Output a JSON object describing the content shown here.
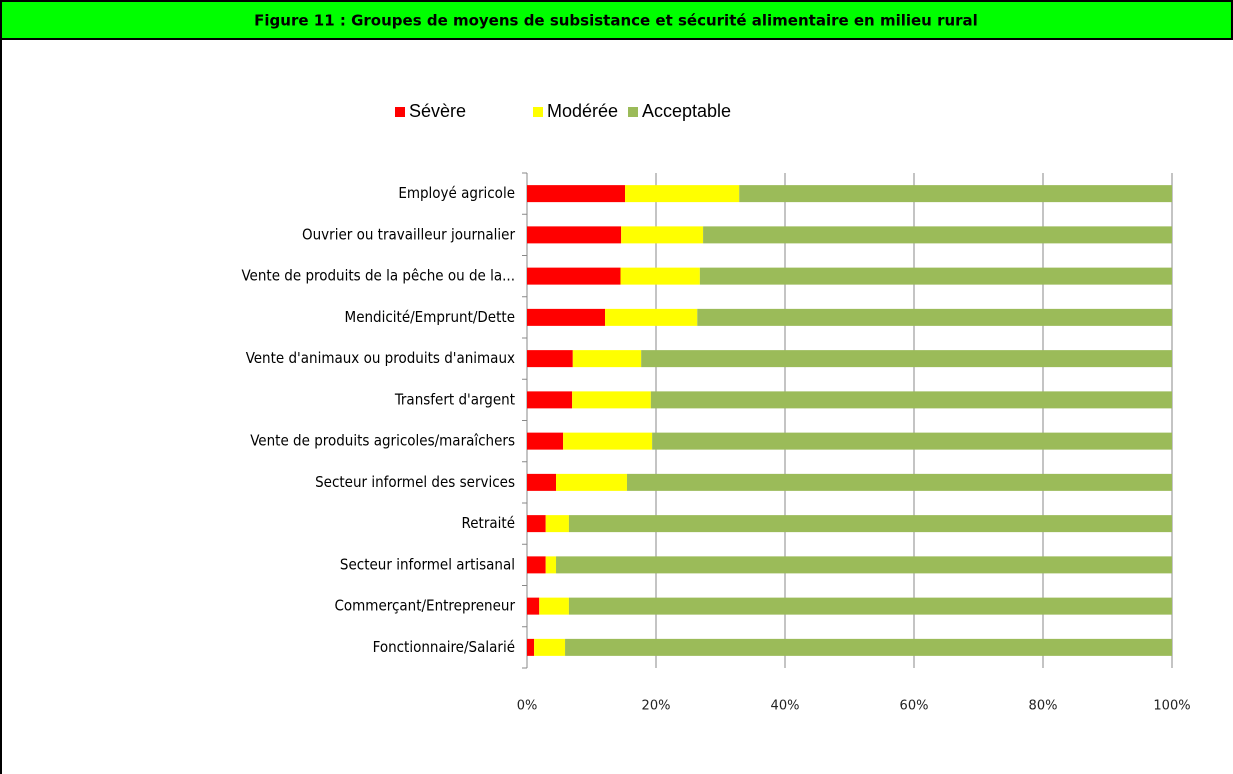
{
  "chart_data": {
    "type": "stacked_barh",
    "title": "Figure 11 : Groupes de moyens de subsistance et sécurité alimentaire en milieu rural",
    "categories": [
      "Employé agricole",
      "Ouvrier ou travailleur journalier",
      "Vente de produits de la pêche ou de la...",
      "Mendicité/Emprunt/Dette",
      "Vente d'animaux ou produits d'animaux",
      "Transfert d'argent",
      "Vente de produits agricoles/maraîchers",
      "Secteur informel des services",
      "Retraité",
      "Secteur informel artisanal",
      "Commerçant/Entrepreneur",
      "Fonctionnaire/Salarié"
    ],
    "series": [
      {
        "name": "Sévère",
        "color": "#ff0000",
        "values": [
          15.2,
          14.6,
          14.5,
          12.1,
          7.1,
          7.0,
          5.6,
          4.5,
          2.9,
          2.9,
          1.9,
          1.1
        ]
      },
      {
        "name": "Modérée",
        "color": "#ffff00",
        "values": [
          17.7,
          12.7,
          12.3,
          14.3,
          10.6,
          12.2,
          13.8,
          11.0,
          3.6,
          1.6,
          4.6,
          4.8
        ]
      },
      {
        "name": "Acceptable",
        "color": "#9bbb59",
        "values": [
          67.1,
          72.7,
          73.2,
          73.6,
          82.3,
          80.8,
          80.6,
          84.5,
          93.5,
          95.5,
          93.5,
          94.1
        ]
      }
    ],
    "xlim": [
      0,
      100
    ],
    "xticks": [
      {
        "value": 0,
        "label": "0%"
      },
      {
        "value": 20,
        "label": "20%"
      },
      {
        "value": 40,
        "label": "40%"
      },
      {
        "value": 60,
        "label": "60%"
      },
      {
        "value": 80,
        "label": "80%"
      },
      {
        "value": 100,
        "label": "100%"
      }
    ],
    "grid": true,
    "legend": "top"
  }
}
